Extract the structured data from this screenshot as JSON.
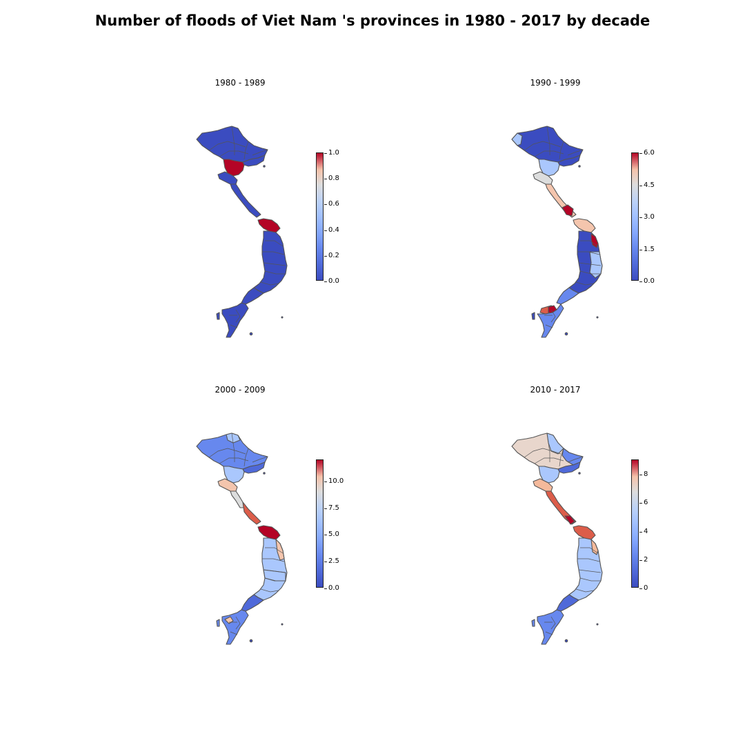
{
  "figure_title": "Number of floods of Viet Nam 's provinces in 1980 - 2017 by decade",
  "colormap": {
    "name": "coolwarm",
    "low": "#3b4cc0",
    "mid": "#dddddd",
    "high": "#b40426"
  },
  "border_color": "#555555",
  "panels": [
    {
      "title": "1980 - 1989",
      "ticks": [
        "0.0",
        "0.2",
        "0.4",
        "0.6",
        "0.8",
        "1.0"
      ],
      "range": [
        0,
        1
      ]
    },
    {
      "title": "1990 - 1999",
      "ticks": [
        "0.0",
        "1.5",
        "3.0",
        "4.5",
        "6.0"
      ],
      "range": [
        0,
        6
      ]
    },
    {
      "title": "2000 - 2009",
      "ticks": [
        "0.0",
        "2.5",
        "5.0",
        "7.5",
        "10.0"
      ],
      "range": [
        0,
        12
      ]
    },
    {
      "title": "2010 - 2017",
      "ticks": [
        "0",
        "2",
        "4",
        "6",
        "8"
      ],
      "range": [
        0,
        9
      ]
    }
  ]
}
